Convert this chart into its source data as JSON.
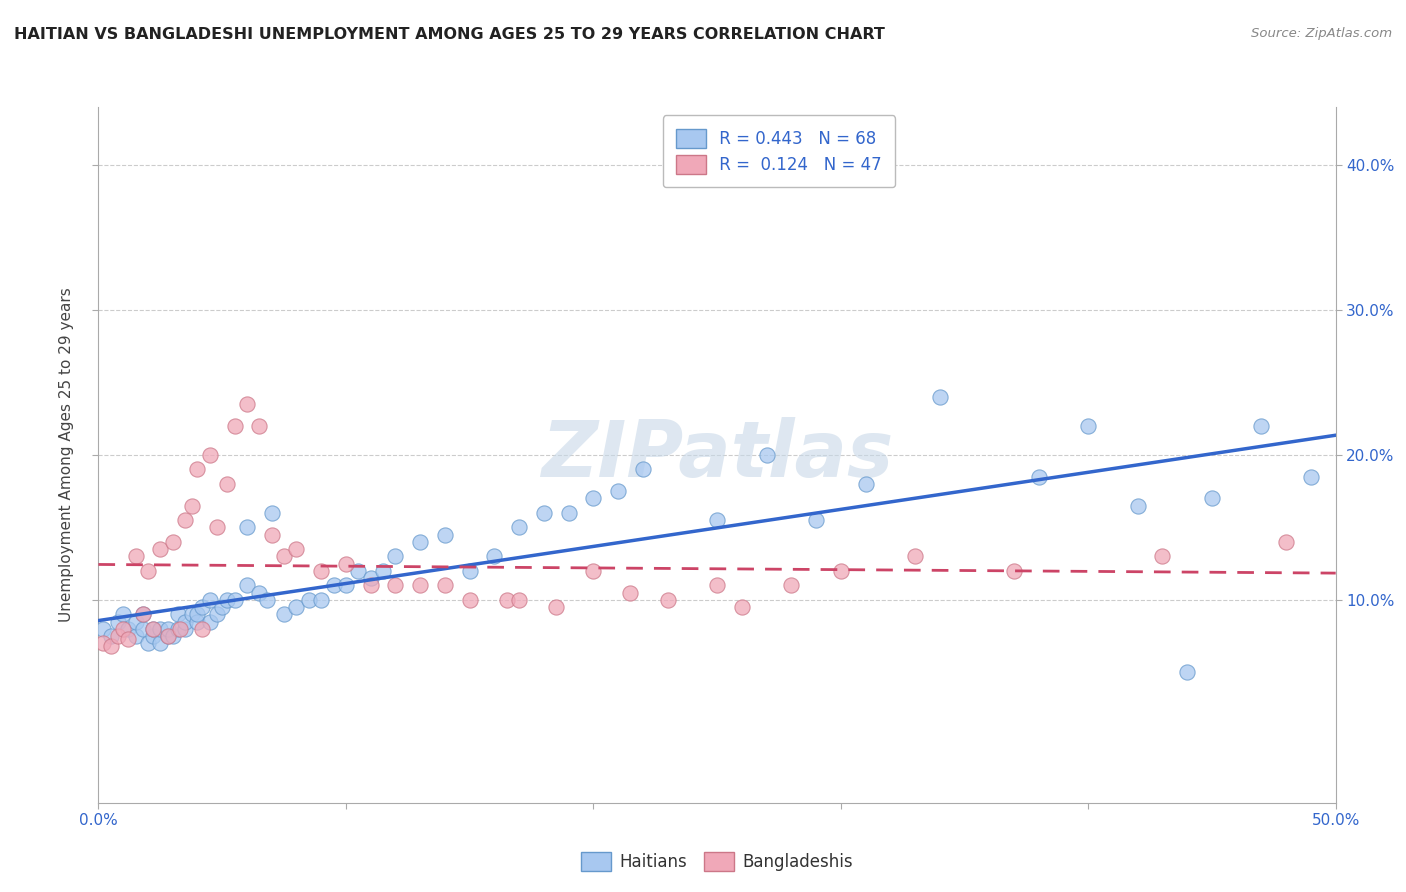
{
  "title": "HAITIAN VS BANGLADESHI UNEMPLOYMENT AMONG AGES 25 TO 29 YEARS CORRELATION CHART",
  "source": "Source: ZipAtlas.com",
  "ylabel": "Unemployment Among Ages 25 to 29 years",
  "xlim": [
    0.0,
    0.5
  ],
  "ylim": [
    -0.04,
    0.44
  ],
  "xticks": [
    0.0,
    0.1,
    0.2,
    0.3,
    0.4,
    0.5
  ],
  "xticklabels": [
    "0.0%",
    "",
    "",
    "",
    "",
    "50.0%"
  ],
  "yticks": [
    0.1,
    0.2,
    0.3,
    0.4
  ],
  "yticklabels": [
    "10.0%",
    "20.0%",
    "30.0%",
    "40.0%"
  ],
  "haitian_color": "#A8C8F0",
  "bangladeshi_color": "#F0A8B8",
  "haitian_edge_color": "#6699CC",
  "bangladeshi_edge_color": "#CC7788",
  "haitian_line_color": "#3366CC",
  "bangladeshi_line_color": "#CC4466",
  "legend_text_color": "#3366CC",
  "watermark_color": "#D8E8F0",
  "watermark": "ZIPatlas",
  "legend_R1": "R = 0.443",
  "legend_N1": "N = 68",
  "legend_R2": "R =  0.124",
  "legend_N2": "N = 47",
  "title_color": "#222222",
  "axis_label_color": "#444444",
  "tick_color": "#3366CC",
  "grid_color": "#CCCCCC",
  "haitian_x": [
    0.002,
    0.005,
    0.008,
    0.01,
    0.012,
    0.015,
    0.015,
    0.018,
    0.018,
    0.02,
    0.022,
    0.022,
    0.025,
    0.025,
    0.028,
    0.028,
    0.03,
    0.032,
    0.032,
    0.035,
    0.035,
    0.038,
    0.04,
    0.04,
    0.042,
    0.045,
    0.045,
    0.048,
    0.05,
    0.052,
    0.055,
    0.06,
    0.06,
    0.065,
    0.068,
    0.07,
    0.075,
    0.08,
    0.085,
    0.09,
    0.095,
    0.1,
    0.105,
    0.11,
    0.115,
    0.12,
    0.13,
    0.14,
    0.15,
    0.16,
    0.17,
    0.18,
    0.19,
    0.2,
    0.21,
    0.22,
    0.25,
    0.27,
    0.29,
    0.31,
    0.34,
    0.38,
    0.4,
    0.42,
    0.44,
    0.45,
    0.47,
    0.49
  ],
  "haitian_y": [
    0.08,
    0.075,
    0.085,
    0.09,
    0.08,
    0.075,
    0.085,
    0.08,
    0.09,
    0.07,
    0.075,
    0.08,
    0.07,
    0.08,
    0.075,
    0.08,
    0.075,
    0.08,
    0.09,
    0.08,
    0.085,
    0.09,
    0.085,
    0.09,
    0.095,
    0.085,
    0.1,
    0.09,
    0.095,
    0.1,
    0.1,
    0.11,
    0.15,
    0.105,
    0.1,
    0.16,
    0.09,
    0.095,
    0.1,
    0.1,
    0.11,
    0.11,
    0.12,
    0.115,
    0.12,
    0.13,
    0.14,
    0.145,
    0.12,
    0.13,
    0.15,
    0.16,
    0.16,
    0.17,
    0.175,
    0.19,
    0.155,
    0.2,
    0.155,
    0.18,
    0.24,
    0.185,
    0.22,
    0.165,
    0.05,
    0.17,
    0.22,
    0.185
  ],
  "bangladeshi_x": [
    0.002,
    0.005,
    0.008,
    0.01,
    0.012,
    0.015,
    0.018,
    0.02,
    0.022,
    0.025,
    0.028,
    0.03,
    0.033,
    0.035,
    0.038,
    0.04,
    0.042,
    0.045,
    0.048,
    0.052,
    0.055,
    0.06,
    0.065,
    0.07,
    0.075,
    0.08,
    0.09,
    0.1,
    0.11,
    0.12,
    0.13,
    0.14,
    0.15,
    0.165,
    0.17,
    0.185,
    0.2,
    0.215,
    0.23,
    0.25,
    0.26,
    0.28,
    0.3,
    0.33,
    0.37,
    0.43,
    0.48
  ],
  "bangladeshi_y": [
    0.07,
    0.068,
    0.075,
    0.08,
    0.073,
    0.13,
    0.09,
    0.12,
    0.08,
    0.135,
    0.075,
    0.14,
    0.08,
    0.155,
    0.165,
    0.19,
    0.08,
    0.2,
    0.15,
    0.18,
    0.22,
    0.235,
    0.22,
    0.145,
    0.13,
    0.135,
    0.12,
    0.125,
    0.11,
    0.11,
    0.11,
    0.11,
    0.1,
    0.1,
    0.1,
    0.095,
    0.12,
    0.105,
    0.1,
    0.11,
    0.095,
    0.11,
    0.12,
    0.13,
    0.12,
    0.13,
    0.14
  ]
}
